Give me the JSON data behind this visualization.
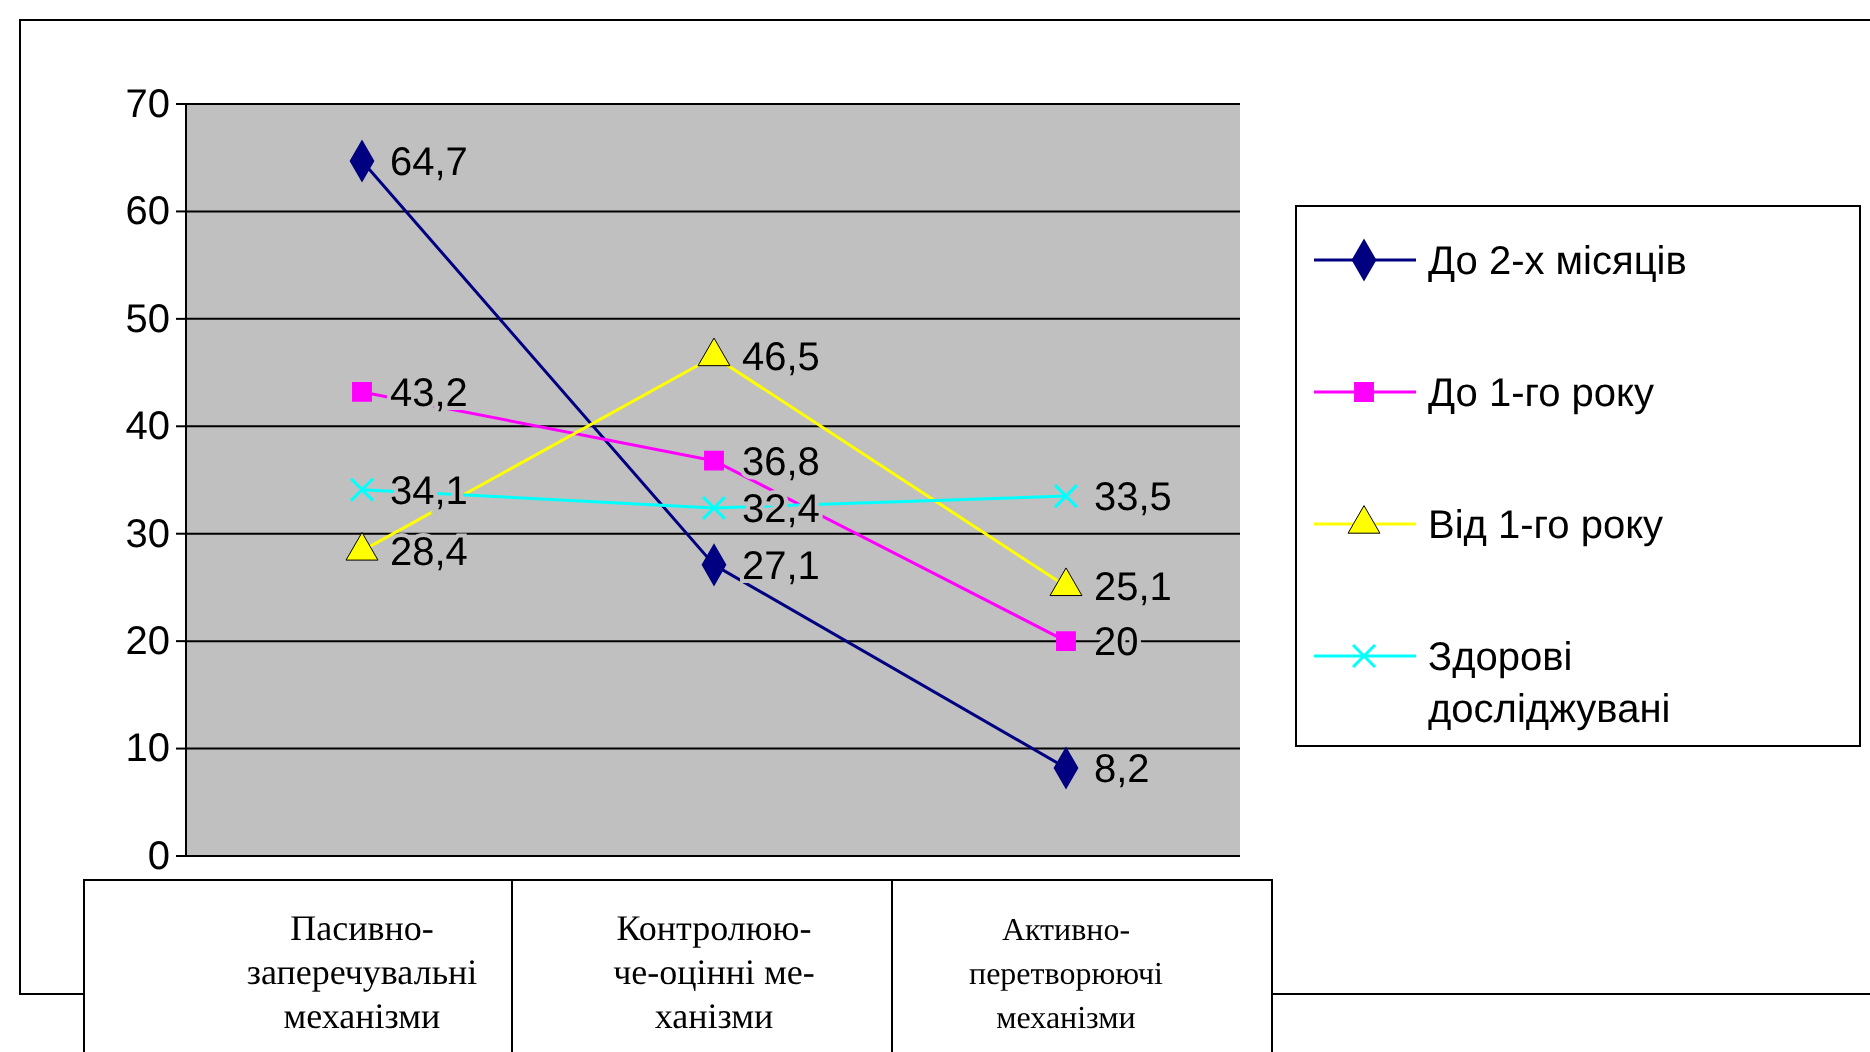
{
  "chart_data": {
    "type": "line",
    "categories": [
      "Пасивно-\nзаперечувальні\nмеханізми",
      "Контролюю-\nче-оцінні ме-\nханізми",
      "Активно-\nперетворюючі\nмеханізми"
    ],
    "series": [
      {
        "name": "До 2-х місяців",
        "color": "#000080",
        "marker": "diamond",
        "values": [
          64.7,
          27.1,
          8.2
        ],
        "value_labels": [
          "64,7",
          "27,1",
          "8,2"
        ]
      },
      {
        "name": "До 1-го року",
        "color": "#ff00ff",
        "marker": "square",
        "values": [
          43.2,
          36.8,
          20
        ],
        "value_labels": [
          "43,2",
          "36,8",
          "20"
        ]
      },
      {
        "name": "Від 1-го року",
        "color": "#ffff00",
        "marker": "triangle",
        "values": [
          28.4,
          46.5,
          25.1
        ],
        "value_labels": [
          "28,4",
          "46,5",
          "25,1"
        ]
      },
      {
        "name": "Здорові\nдосліджувані",
        "color": "#00ffff",
        "marker": "cross",
        "values": [
          34.1,
          32.4,
          33.5
        ],
        "value_labels": [
          "34,1",
          "32,4",
          "33,5"
        ]
      }
    ],
    "ylim": [
      0,
      70
    ],
    "yticks": [
      0,
      10,
      20,
      30,
      40,
      50,
      60,
      70
    ],
    "grid": "y",
    "legend": "right"
  }
}
